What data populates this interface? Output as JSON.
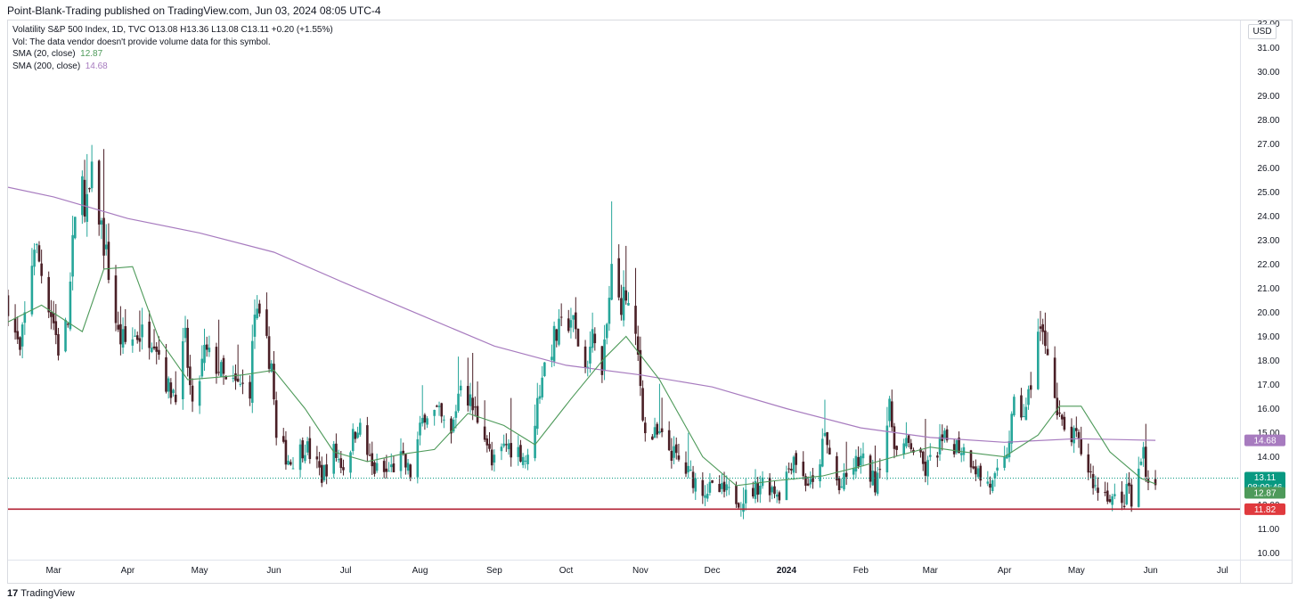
{
  "header": {
    "publisher": "Point-Blank-Trading published on TradingView.com, Jun 03, 2024 08:05 UTC-4"
  },
  "legend": {
    "symbol_line": "Volatility S&P 500 Index, 1D, TVC  O13.08  H13.36  L13.08  C13.11  +0.20 (+1.55%)",
    "vol_line": "Vol: The data vendor doesn't provide volume data for this symbol.",
    "sma20_label": "SMA (20, close)",
    "sma20_value": "12.87",
    "sma200_label": "SMA (200, close)",
    "sma200_value": "14.68"
  },
  "currency": "USD",
  "footer": {
    "logo": "17",
    "brand": "TradingView"
  },
  "colors": {
    "candle_up": "#26a69a",
    "candle_down": "#4a1f26",
    "sma20": "#4e9a5a",
    "sma200": "#a77bbf",
    "support_line": "#b22234",
    "last_price": "#089981"
  },
  "chart_data": {
    "type": "candlestick",
    "symbol": "Volatility S&P 500 Index",
    "interval": "1D",
    "ylim": [
      9.6,
      32.4
    ],
    "y_ticks": [
      "10.00",
      "11.00",
      "12.00",
      "13.00",
      "14.00",
      "15.00",
      "16.00",
      "17.00",
      "18.00",
      "19.00",
      "20.00",
      "21.00",
      "22.00",
      "23.00",
      "24.00",
      "25.00",
      "26.00",
      "27.00",
      "28.00",
      "29.00",
      "30.00",
      "31.00",
      "32.00"
    ],
    "x_months": [
      {
        "label": "Mar",
        "date": "2023-03-01"
      },
      {
        "label": "Apr",
        "date": "2023-04-01"
      },
      {
        "label": "May",
        "date": "2023-05-01"
      },
      {
        "label": "Jun",
        "date": "2023-06-01"
      },
      {
        "label": "Jul",
        "date": "2023-07-01"
      },
      {
        "label": "Aug",
        "date": "2023-08-01"
      },
      {
        "label": "Sep",
        "date": "2023-09-01"
      },
      {
        "label": "Oct",
        "date": "2023-10-01"
      },
      {
        "label": "Nov",
        "date": "2023-11-01"
      },
      {
        "label": "Dec",
        "date": "2023-12-01"
      },
      {
        "label": "2024",
        "date": "2024-01-01"
      },
      {
        "label": "Feb",
        "date": "2024-02-01"
      },
      {
        "label": "Mar",
        "date": "2024-03-01"
      },
      {
        "label": "Apr",
        "date": "2024-04-01"
      },
      {
        "label": "May",
        "date": "2024-05-01"
      },
      {
        "label": "Jun",
        "date": "2024-06-01"
      },
      {
        "label": "Jul",
        "date": "2024-07-01"
      }
    ],
    "close_path": [
      [
        "2023-02-10",
        20.5
      ],
      [
        "2023-02-15",
        18.2
      ],
      [
        "2023-02-21",
        22.9
      ],
      [
        "2023-02-24",
        21.7
      ],
      [
        "2023-03-01",
        19.6
      ],
      [
        "2023-03-03",
        18.5
      ],
      [
        "2023-03-07",
        19.6
      ],
      [
        "2023-03-09",
        22.6
      ],
      [
        "2023-03-13",
        26.5
      ],
      [
        "2023-03-14",
        23.7
      ],
      [
        "2023-03-17",
        25.5
      ],
      [
        "2023-03-20",
        24.1
      ],
      [
        "2023-03-24",
        21.7
      ],
      [
        "2023-03-28",
        19.0
      ],
      [
        "2023-03-31",
        18.7
      ],
      [
        "2023-04-05",
        19.1
      ],
      [
        "2023-04-12",
        19.1
      ],
      [
        "2023-04-18",
        16.8
      ],
      [
        "2023-04-21",
        16.8
      ],
      [
        "2023-04-25",
        18.8
      ],
      [
        "2023-04-28",
        15.8
      ],
      [
        "2023-05-03",
        18.3
      ],
      [
        "2023-05-09",
        17.7
      ],
      [
        "2023-05-12",
        17.0
      ],
      [
        "2023-05-17",
        16.9
      ],
      [
        "2023-05-22",
        16.9
      ],
      [
        "2023-05-24",
        20.0
      ],
      [
        "2023-05-31",
        17.9
      ],
      [
        "2023-06-02",
        14.6
      ],
      [
        "2023-06-08",
        13.8
      ],
      [
        "2023-06-14",
        14.5
      ],
      [
        "2023-06-21",
        13.2
      ],
      [
        "2023-06-26",
        14.2
      ],
      [
        "2023-06-30",
        13.6
      ],
      [
        "2023-07-06",
        15.4
      ],
      [
        "2023-07-12",
        13.5
      ],
      [
        "2023-07-18",
        13.3
      ],
      [
        "2023-07-24",
        13.9
      ],
      [
        "2023-07-28",
        13.3
      ],
      [
        "2023-08-03",
        15.9
      ],
      [
        "2023-08-08",
        15.8
      ],
      [
        "2023-08-14",
        14.8
      ],
      [
        "2023-08-18",
        17.3
      ],
      [
        "2023-08-23",
        16.0
      ],
      [
        "2023-08-28",
        15.1
      ],
      [
        "2023-08-31",
        13.6
      ],
      [
        "2023-09-06",
        14.5
      ],
      [
        "2023-09-12",
        14.2
      ],
      [
        "2023-09-15",
        13.8
      ],
      [
        "2023-09-21",
        17.5
      ],
      [
        "2023-09-26",
        18.9
      ],
      [
        "2023-10-03",
        19.8
      ],
      [
        "2023-10-09",
        17.7
      ],
      [
        "2023-10-13",
        19.3
      ],
      [
        "2023-10-16",
        17.2
      ],
      [
        "2023-10-20",
        21.7
      ],
      [
        "2023-10-23",
        20.4
      ],
      [
        "2023-10-26",
        20.7
      ],
      [
        "2023-10-31",
        18.1
      ],
      [
        "2023-11-03",
        14.9
      ],
      [
        "2023-11-09",
        14.8
      ],
      [
        "2023-11-14",
        14.2
      ],
      [
        "2023-11-20",
        13.4
      ],
      [
        "2023-11-27",
        12.7
      ],
      [
        "2023-12-01",
        12.6
      ],
      [
        "2023-12-07",
        12.5
      ],
      [
        "2023-12-13",
        12.2
      ],
      [
        "2023-12-18",
        12.6
      ],
      [
        "2023-12-22",
        13.0
      ],
      [
        "2023-12-29",
        12.5
      ],
      [
        "2024-01-04",
        14.1
      ],
      [
        "2024-01-08",
        13.1
      ],
      [
        "2024-01-12",
        12.7
      ],
      [
        "2024-01-17",
        14.8
      ],
      [
        "2024-01-23",
        12.6
      ],
      [
        "2024-01-29",
        13.6
      ],
      [
        "2024-02-01",
        13.9
      ],
      [
        "2024-02-07",
        12.9
      ],
      [
        "2024-02-13",
        15.9
      ],
      [
        "2024-02-16",
        14.2
      ],
      [
        "2024-02-22",
        14.5
      ],
      [
        "2024-02-28",
        13.4
      ],
      [
        "2024-03-05",
        14.5
      ],
      [
        "2024-03-08",
        14.7
      ],
      [
        "2024-03-14",
        14.4
      ],
      [
        "2024-03-19",
        13.8
      ],
      [
        "2024-03-22",
        13.1
      ],
      [
        "2024-03-27",
        12.8
      ],
      [
        "2024-04-01",
        13.7
      ],
      [
        "2024-04-05",
        16.0
      ],
      [
        "2024-04-10",
        15.8
      ],
      [
        "2024-04-15",
        19.2
      ],
      [
        "2024-04-19",
        18.7
      ],
      [
        "2024-04-23",
        15.7
      ],
      [
        "2024-04-26",
        15.0
      ],
      [
        "2024-05-01",
        14.7
      ],
      [
        "2024-05-06",
        13.5
      ],
      [
        "2024-05-09",
        12.7
      ],
      [
        "2024-05-15",
        12.4
      ],
      [
        "2024-05-20",
        11.9
      ],
      [
        "2024-05-23",
        12.8
      ],
      [
        "2024-05-24",
        11.9
      ],
      [
        "2024-05-29",
        14.3
      ],
      [
        "2024-05-31",
        12.9
      ],
      [
        "2024-06-03",
        13.11
      ]
    ],
    "sma20_path": [
      [
        "2023-02-10",
        19.6
      ],
      [
        "2023-02-24",
        20.3
      ],
      [
        "2023-03-13",
        19.2
      ],
      [
        "2023-03-22",
        21.8
      ],
      [
        "2023-04-03",
        21.9
      ],
      [
        "2023-04-14",
        18.9
      ],
      [
        "2023-04-26",
        17.2
      ],
      [
        "2023-05-08",
        17.3
      ],
      [
        "2023-05-19",
        17.4
      ],
      [
        "2023-06-01",
        17.6
      ],
      [
        "2023-06-14",
        16.0
      ],
      [
        "2023-06-26",
        14.2
      ],
      [
        "2023-07-10",
        13.8
      ],
      [
        "2023-07-24",
        14.1
      ],
      [
        "2023-08-07",
        14.3
      ],
      [
        "2023-08-21",
        15.8
      ],
      [
        "2023-09-05",
        15.3
      ],
      [
        "2023-09-18",
        14.5
      ],
      [
        "2023-10-03",
        16.4
      ],
      [
        "2023-10-17",
        18.1
      ],
      [
        "2023-10-26",
        19.0
      ],
      [
        "2023-11-09",
        17.2
      ],
      [
        "2023-11-27",
        14.0
      ],
      [
        "2023-12-11",
        12.8
      ],
      [
        "2023-12-27",
        13.0
      ],
      [
        "2024-01-16",
        13.2
      ],
      [
        "2024-02-01",
        13.6
      ],
      [
        "2024-02-15",
        14.0
      ],
      [
        "2024-03-01",
        14.4
      ],
      [
        "2024-03-15",
        14.2
      ],
      [
        "2024-04-01",
        14.0
      ],
      [
        "2024-04-15",
        14.9
      ],
      [
        "2024-04-24",
        16.1
      ],
      [
        "2024-05-03",
        16.1
      ],
      [
        "2024-05-15",
        14.2
      ],
      [
        "2024-05-28",
        13.1
      ],
      [
        "2024-06-03",
        12.87
      ]
    ],
    "sma200_path": [
      [
        "2023-02-10",
        25.2
      ],
      [
        "2023-03-01",
        24.8
      ],
      [
        "2023-04-01",
        23.9
      ],
      [
        "2023-05-01",
        23.3
      ],
      [
        "2023-06-01",
        22.5
      ],
      [
        "2023-07-01",
        21.2
      ],
      [
        "2023-08-01",
        19.9
      ],
      [
        "2023-09-01",
        18.6
      ],
      [
        "2023-10-01",
        17.8
      ],
      [
        "2023-11-01",
        17.4
      ],
      [
        "2023-12-01",
        16.9
      ],
      [
        "2024-01-01",
        16.0
      ],
      [
        "2024-02-01",
        15.2
      ],
      [
        "2024-03-01",
        14.8
      ],
      [
        "2024-04-01",
        14.6
      ],
      [
        "2024-05-01",
        14.75
      ],
      [
        "2024-06-03",
        14.68
      ]
    ],
    "support_line": {
      "value": 11.82
    },
    "last_price_line": {
      "value": 13.11
    },
    "price_labels": [
      {
        "name": "SMA 200",
        "text": "14.68",
        "value": 14.68,
        "color": "#a77bbf"
      },
      {
        "name": "Last close",
        "text": "13.11",
        "value": 13.11,
        "color": "#089981",
        "sub": "08:09:46"
      },
      {
        "name": "SMA 20",
        "text": "12.87",
        "value": 12.87,
        "color": "#4e9a5a"
      },
      {
        "name": "Support",
        "text": "11.82",
        "value": 11.82,
        "color": "#e03a3e"
      }
    ]
  }
}
